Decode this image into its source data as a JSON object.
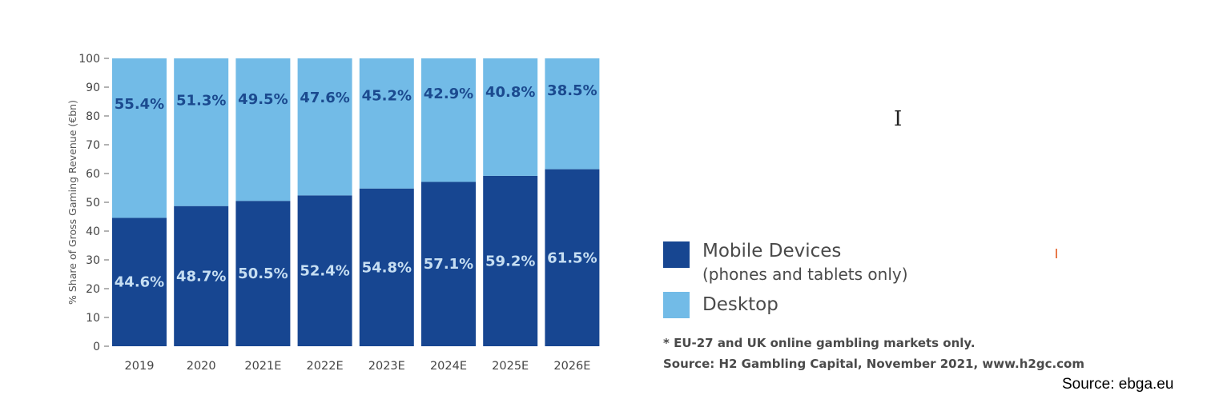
{
  "chart_data": {
    "type": "bar",
    "stacked": true,
    "categories": [
      "2019",
      "2020",
      "2021E",
      "2022E",
      "2023E",
      "2024E",
      "2025E",
      "2026E"
    ],
    "series": [
      {
        "name": "Mobile Devices (phones and tablets only)",
        "values": [
          44.6,
          48.7,
          50.5,
          52.4,
          54.8,
          57.1,
          59.2,
          61.5
        ],
        "labels": [
          "44.6%",
          "48.7%",
          "50.5%",
          "52.4%",
          "54.8%",
          "57.1%",
          "59.2%",
          "61.5%"
        ],
        "color": "#174691",
        "label_color": "#c6def2"
      },
      {
        "name": "Desktop",
        "values": [
          55.4,
          51.3,
          49.5,
          47.6,
          45.2,
          42.9,
          40.8,
          38.5
        ],
        "labels": [
          "55.4%",
          "51.3%",
          "49.5%",
          "47.6%",
          "45.2%",
          "42.9%",
          "40.8%",
          "38.5%"
        ],
        "color": "#72bbe7",
        "label_color": "#1b4a8f"
      }
    ],
    "ylabel": "% Share of Gross Gaming Revenue (€bn)",
    "ylim": [
      0,
      100
    ],
    "yticks": [
      "0",
      "10",
      "20",
      "30",
      "40",
      "50",
      "60",
      "70",
      "80",
      "90",
      "100"
    ],
    "grid": false,
    "legend_position": "right"
  },
  "legend": {
    "mobile_label": "Mobile Devices",
    "mobile_sub": "(phones and tablets only)",
    "desktop_label": "Desktop"
  },
  "notes": {
    "footnote": "* EU-27 and UK online gambling markets only.",
    "source": "Source: H2 Gambling Capital, November 2021, www.h2gc.com"
  },
  "credit": "Source: ebga.eu"
}
